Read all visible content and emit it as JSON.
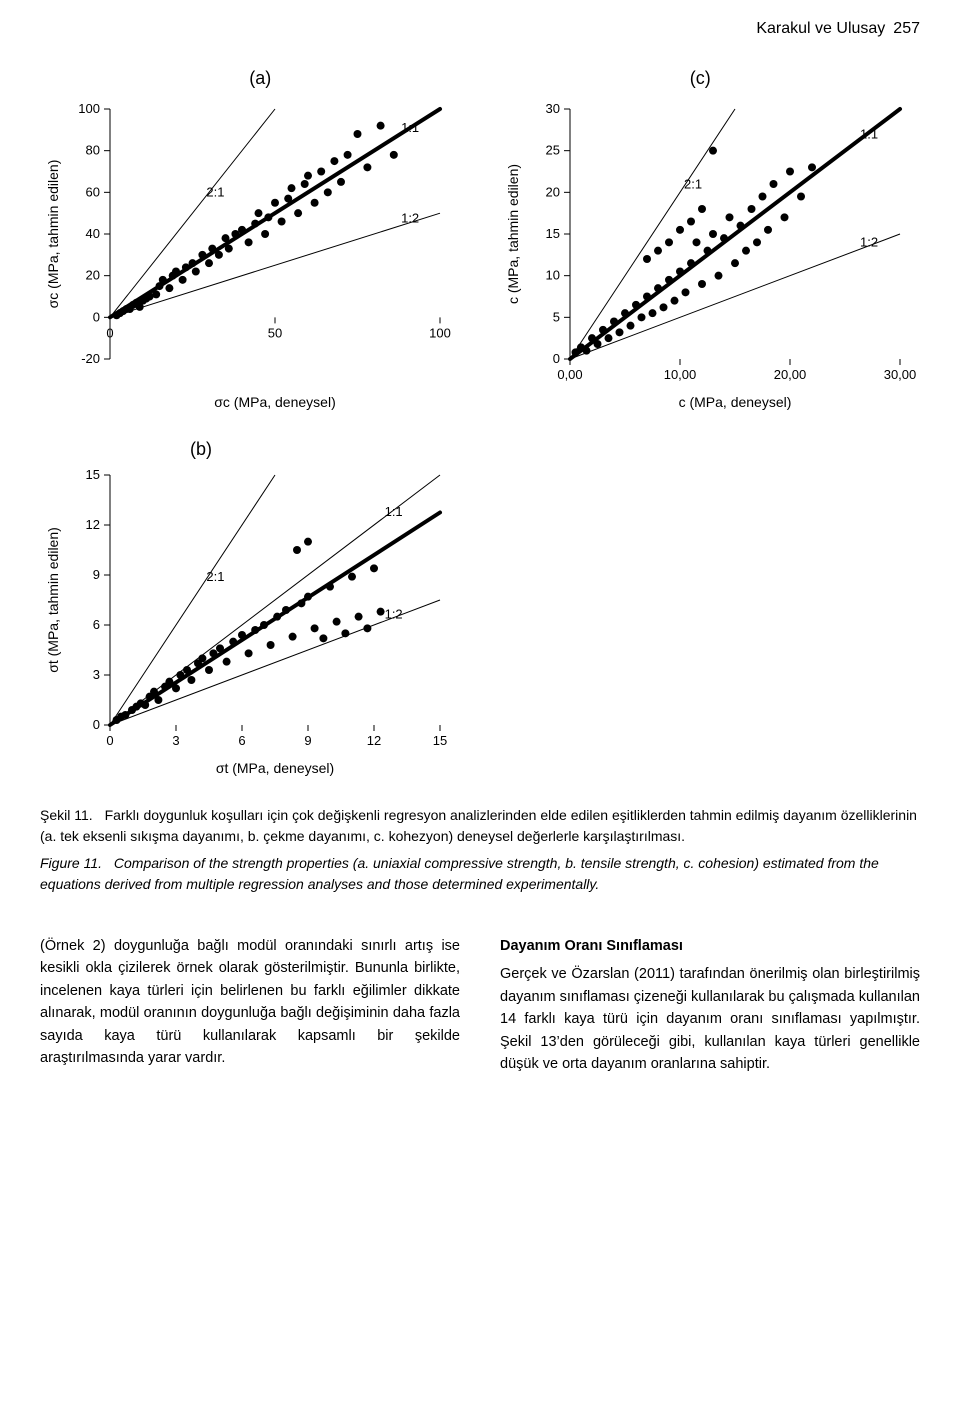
{
  "header": {
    "title": "Karakul ve Ulusay",
    "pagenum": "257"
  },
  "panel_labels": {
    "a": "(a)",
    "b": "(b)",
    "c": "(c)"
  },
  "chart_a": {
    "type": "scatter",
    "xlabel": "σc (MPa, deneysel)",
    "ylabel": "σc (MPa, tahmin edilen)",
    "xlim": [
      0,
      100
    ],
    "ylim": [
      -20,
      100
    ],
    "xticks": [
      0,
      50,
      100
    ],
    "yticks": [
      -20,
      0,
      20,
      40,
      60,
      80,
      100
    ],
    "tick_fontsize": 13,
    "label_fontsize": 14,
    "background_color": "#ffffff",
    "axis_color": "#000000",
    "marker_color": "#000000",
    "marker_size": 4,
    "diag_lines": [
      {
        "label": "2:1",
        "slope": 2.0,
        "color": "#000000",
        "width": 1
      },
      {
        "label": "1:1",
        "slope": 1.0,
        "color": "#000000",
        "width": 1
      },
      {
        "label": "1:2",
        "slope": 0.5,
        "color": "#000000",
        "width": 1
      }
    ],
    "fit_line": {
      "slope": 1.0,
      "intercept": 0,
      "color": "#000000",
      "width": 4
    },
    "annot": {
      "2:1": [
        28,
        5
      ],
      "1:1": [
        87,
        10
      ],
      "1:2": [
        87,
        40
      ]
    },
    "points": [
      [
        2,
        1
      ],
      [
        3,
        2
      ],
      [
        4,
        3
      ],
      [
        5,
        4
      ],
      [
        6,
        4
      ],
      [
        7,
        6
      ],
      [
        8,
        7
      ],
      [
        9,
        5
      ],
      [
        10,
        8
      ],
      [
        11,
        9
      ],
      [
        12,
        10
      ],
      [
        14,
        11
      ],
      [
        15,
        15
      ],
      [
        16,
        18
      ],
      [
        18,
        14
      ],
      [
        19,
        20
      ],
      [
        20,
        22
      ],
      [
        22,
        18
      ],
      [
        23,
        24
      ],
      [
        25,
        26
      ],
      [
        26,
        22
      ],
      [
        28,
        30
      ],
      [
        30,
        26
      ],
      [
        31,
        33
      ],
      [
        33,
        30
      ],
      [
        35,
        38
      ],
      [
        36,
        33
      ],
      [
        38,
        40
      ],
      [
        40,
        42
      ],
      [
        42,
        36
      ],
      [
        44,
        45
      ],
      [
        45,
        50
      ],
      [
        47,
        40
      ],
      [
        48,
        48
      ],
      [
        50,
        55
      ],
      [
        52,
        46
      ],
      [
        54,
        57
      ],
      [
        55,
        62
      ],
      [
        57,
        50
      ],
      [
        59,
        64
      ],
      [
        60,
        68
      ],
      [
        62,
        55
      ],
      [
        64,
        70
      ],
      [
        66,
        60
      ],
      [
        68,
        75
      ],
      [
        70,
        65
      ],
      [
        72,
        78
      ],
      [
        75,
        88
      ],
      [
        78,
        72
      ],
      [
        82,
        92
      ],
      [
        86,
        78
      ]
    ],
    "panel_label": "(a)"
  },
  "chart_b": {
    "type": "scatter",
    "xlabel": "σt (MPa, deneysel)",
    "ylabel": "σt (MPa, tahmin edilen)",
    "xlim": [
      0,
      15
    ],
    "ylim": [
      0,
      15
    ],
    "xticks": [
      0,
      3,
      6,
      9,
      12,
      15
    ],
    "yticks": [
      0,
      3,
      6,
      9,
      12,
      15
    ],
    "tick_fontsize": 13,
    "label_fontsize": 14,
    "background_color": "#ffffff",
    "axis_color": "#000000",
    "marker_color": "#000000",
    "marker_size": 4,
    "diag_lines": [
      {
        "label": "2:1",
        "slope": 2.0,
        "color": "#000000",
        "width": 1
      },
      {
        "label": "1:1",
        "slope": 1.0,
        "color": "#000000",
        "width": 1
      },
      {
        "label": "1:2",
        "slope": 0.5,
        "color": "#000000",
        "width": 1
      }
    ],
    "fit_line": {
      "slope": 0.85,
      "intercept": 0,
      "color": "#000000",
      "width": 4
    },
    "annot": {
      "2:1": [
        4.2,
        1
      ],
      "1:1": [
        12.3,
        1.5
      ],
      "1:2": [
        12.3,
        5.8
      ]
    },
    "points": [
      [
        0.3,
        0.3
      ],
      [
        0.5,
        0.5
      ],
      [
        0.7,
        0.6
      ],
      [
        1.0,
        0.9
      ],
      [
        1.2,
        1.1
      ],
      [
        1.4,
        1.3
      ],
      [
        1.6,
        1.2
      ],
      [
        1.8,
        1.7
      ],
      [
        2.0,
        2.0
      ],
      [
        2.2,
        1.5
      ],
      [
        2.5,
        2.3
      ],
      [
        2.7,
        2.6
      ],
      [
        3.0,
        2.2
      ],
      [
        3.2,
        3.0
      ],
      [
        3.5,
        3.3
      ],
      [
        3.7,
        2.7
      ],
      [
        4.0,
        3.7
      ],
      [
        4.2,
        4.0
      ],
      [
        4.5,
        3.3
      ],
      [
        4.7,
        4.3
      ],
      [
        5.0,
        4.6
      ],
      [
        5.3,
        3.8
      ],
      [
        5.6,
        5.0
      ],
      [
        6.0,
        5.4
      ],
      [
        6.3,
        4.3
      ],
      [
        6.6,
        5.7
      ],
      [
        7.0,
        6.0
      ],
      [
        7.3,
        4.8
      ],
      [
        7.6,
        6.5
      ],
      [
        8.0,
        6.9
      ],
      [
        8.3,
        5.3
      ],
      [
        8.7,
        7.3
      ],
      [
        9.0,
        7.7
      ],
      [
        9.3,
        5.8
      ],
      [
        9.7,
        5.2
      ],
      [
        10.0,
        8.3
      ],
      [
        10.3,
        6.2
      ],
      [
        10.7,
        5.5
      ],
      [
        11.0,
        8.9
      ],
      [
        11.3,
        6.5
      ],
      [
        11.7,
        5.8
      ],
      [
        12.0,
        9.4
      ],
      [
        12.3,
        6.8
      ],
      [
        9.0,
        11.0
      ],
      [
        8.5,
        10.5
      ]
    ],
    "panel_label": "(b)"
  },
  "chart_c": {
    "type": "scatter",
    "xlabel": "c (MPa, deneysel)",
    "ylabel": "c (MPa, tahmin edilen)",
    "xlim": [
      0,
      30
    ],
    "ylim": [
      0,
      30
    ],
    "xticks_labels": [
      "0,00",
      "10,00",
      "20,00",
      "30,00"
    ],
    "xticks_vals": [
      0,
      10,
      20,
      30
    ],
    "yticks": [
      0,
      5,
      10,
      15,
      20,
      25,
      30
    ],
    "tick_fontsize": 13,
    "label_fontsize": 14,
    "background_color": "#ffffff",
    "axis_color": "#000000",
    "marker_color": "#000000",
    "marker_size": 4,
    "diag_lines": [
      {
        "label": "2:1",
        "slope": 2.0,
        "color": "#000000",
        "width": 1
      },
      {
        "label": "1:1",
        "slope": 1.0,
        "color": "#000000",
        "width": 1
      },
      {
        "label": "1:2",
        "slope": 0.5,
        "color": "#000000",
        "width": 1
      }
    ],
    "fit_line": {
      "slope": 1.0,
      "intercept": 0,
      "color": "#000000",
      "width": 4
    },
    "annot": {
      "2:1": [
        10,
        1
      ],
      "1:1": [
        26,
        2.5
      ],
      "1:2": [
        26,
        11
      ]
    },
    "points": [
      [
        0.5,
        0.8
      ],
      [
        1.0,
        1.4
      ],
      [
        1.5,
        1.0
      ],
      [
        2.0,
        2.5
      ],
      [
        2.5,
        1.8
      ],
      [
        3.0,
        3.5
      ],
      [
        3.5,
        2.5
      ],
      [
        4.0,
        4.5
      ],
      [
        4.5,
        3.2
      ],
      [
        5.0,
        5.5
      ],
      [
        5.5,
        4.0
      ],
      [
        6.0,
        6.5
      ],
      [
        6.5,
        5.0
      ],
      [
        7.0,
        7.5
      ],
      [
        7.5,
        5.5
      ],
      [
        8.0,
        8.5
      ],
      [
        8.5,
        6.2
      ],
      [
        9.0,
        9.5
      ],
      [
        9.5,
        7.0
      ],
      [
        10.0,
        10.5
      ],
      [
        10.5,
        8.0
      ],
      [
        11.0,
        11.5
      ],
      [
        11.5,
        14.0
      ],
      [
        12.0,
        9.0
      ],
      [
        12.5,
        13.0
      ],
      [
        13.0,
        15.0
      ],
      [
        13.5,
        10.0
      ],
      [
        14.0,
        14.5
      ],
      [
        14.5,
        17.0
      ],
      [
        15.0,
        11.5
      ],
      [
        15.5,
        16.0
      ],
      [
        16.0,
        13.0
      ],
      [
        16.5,
        18.0
      ],
      [
        17.0,
        14.0
      ],
      [
        17.5,
        19.5
      ],
      [
        18.0,
        15.5
      ],
      [
        18.5,
        21.0
      ],
      [
        13.0,
        25.0
      ],
      [
        19.5,
        17.0
      ],
      [
        20.0,
        22.5
      ],
      [
        21.0,
        19.5
      ],
      [
        22.0,
        23.0
      ],
      [
        7.0,
        12.0
      ],
      [
        8.0,
        13.0
      ],
      [
        9.0,
        14.0
      ],
      [
        10.0,
        15.5
      ],
      [
        11.0,
        16.5
      ],
      [
        12.0,
        18.0
      ]
    ],
    "panel_label": "(c)"
  },
  "caption_tr": {
    "label": "Şekil 11.",
    "text": "Farklı doygunluk koşulları için çok değişkenli regresyon analizlerinden elde edilen eşitliklerden tahmin edilmiş dayanım özelliklerinin (a. tek eksenli sıkışma dayanımı, b. çekme dayanımı, c. kohezyon) deneysel değerlerle karşılaştırılması."
  },
  "caption_en": {
    "label": "Figure 11.",
    "text": "Comparison of the strength properties (a. uniaxial compressive strength, b. tensile strength, c. cohesion) estimated from the equations derived from multiple regression analyses and those determined experimentally."
  },
  "body_left": "(Örnek 2) doygunluğa bağlı modül oranındaki sınırlı artış ise kesikli okla çizilerek örnek olarak gösterilmiştir. Bununla birlikte, incelenen kaya türleri için belirlenen bu farklı eğilimler dikkate alınarak, modül oranının doygunluğa bağlı değişiminin daha fazla sayıda kaya türü kullanılarak kapsamlı bir şekilde araştırılmasında yarar vardır.",
  "body_right_heading": "Dayanım Oranı Sınıflaması",
  "body_right": "Gerçek ve Özarslan (2011) tarafından önerilmiş olan birleştirilmiş dayanım sınıflaması çizeneği kullanılarak bu çalışmada kullanılan 14 farklı kaya türü için dayanım oranı sınıflaması yapılmıştır. Şekil 13’den görüleceği gibi, kullanılan kaya türleri genellikle düşük ve orta dayanım oranlarına sahiptir."
}
